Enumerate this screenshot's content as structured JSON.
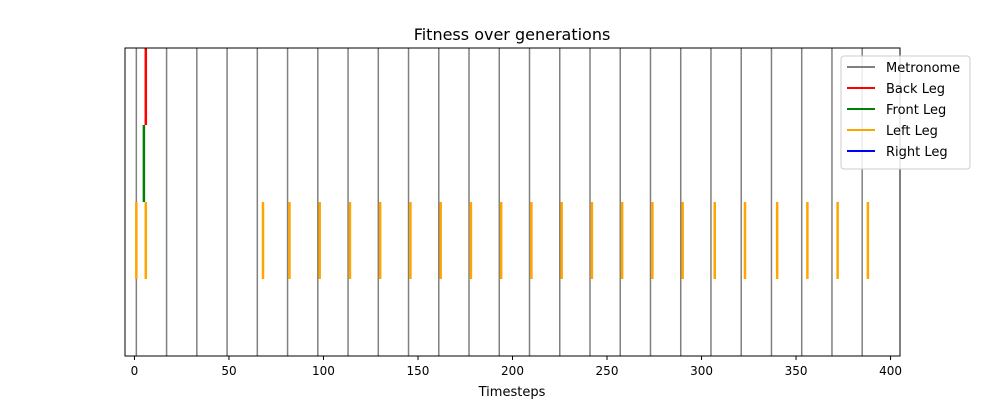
{
  "chart_data": {
    "type": "event-raster",
    "title": "Fitness over generations",
    "xlabel": "Timesteps",
    "ylabel": "",
    "xlim": [
      -5,
      405
    ],
    "ylim": [
      0,
      4
    ],
    "xticks": [
      0,
      50,
      100,
      150,
      200,
      250,
      300,
      350,
      400
    ],
    "grid": false,
    "legend_position": "top-right",
    "series": [
      {
        "name": "Metronome",
        "color": "#808080",
        "y_range": [
          0,
          4
        ],
        "events": [
          1,
          17,
          33,
          49,
          65,
          81,
          97,
          113,
          129,
          145,
          161,
          177,
          193,
          209,
          225,
          241,
          257,
          273,
          289,
          305,
          321,
          337,
          353,
          369,
          385
        ]
      },
      {
        "name": "Back Leg",
        "color": "#ff0000",
        "y_range": [
          3,
          4
        ],
        "events": [
          6
        ]
      },
      {
        "name": "Front Leg",
        "color": "#008000",
        "y_range": [
          2,
          3
        ],
        "events": [
          5
        ]
      },
      {
        "name": "Left Leg",
        "color": "#ffa500",
        "y_range": [
          1,
          2
        ],
        "events": [
          1,
          6,
          68,
          82,
          98,
          114,
          130,
          146,
          162,
          178,
          194,
          210,
          226,
          242,
          258,
          274,
          290,
          307,
          323,
          340,
          356,
          372,
          388
        ]
      },
      {
        "name": "Right Leg",
        "color": "#0000ff",
        "y_range": [
          0,
          1
        ],
        "events": []
      }
    ]
  }
}
